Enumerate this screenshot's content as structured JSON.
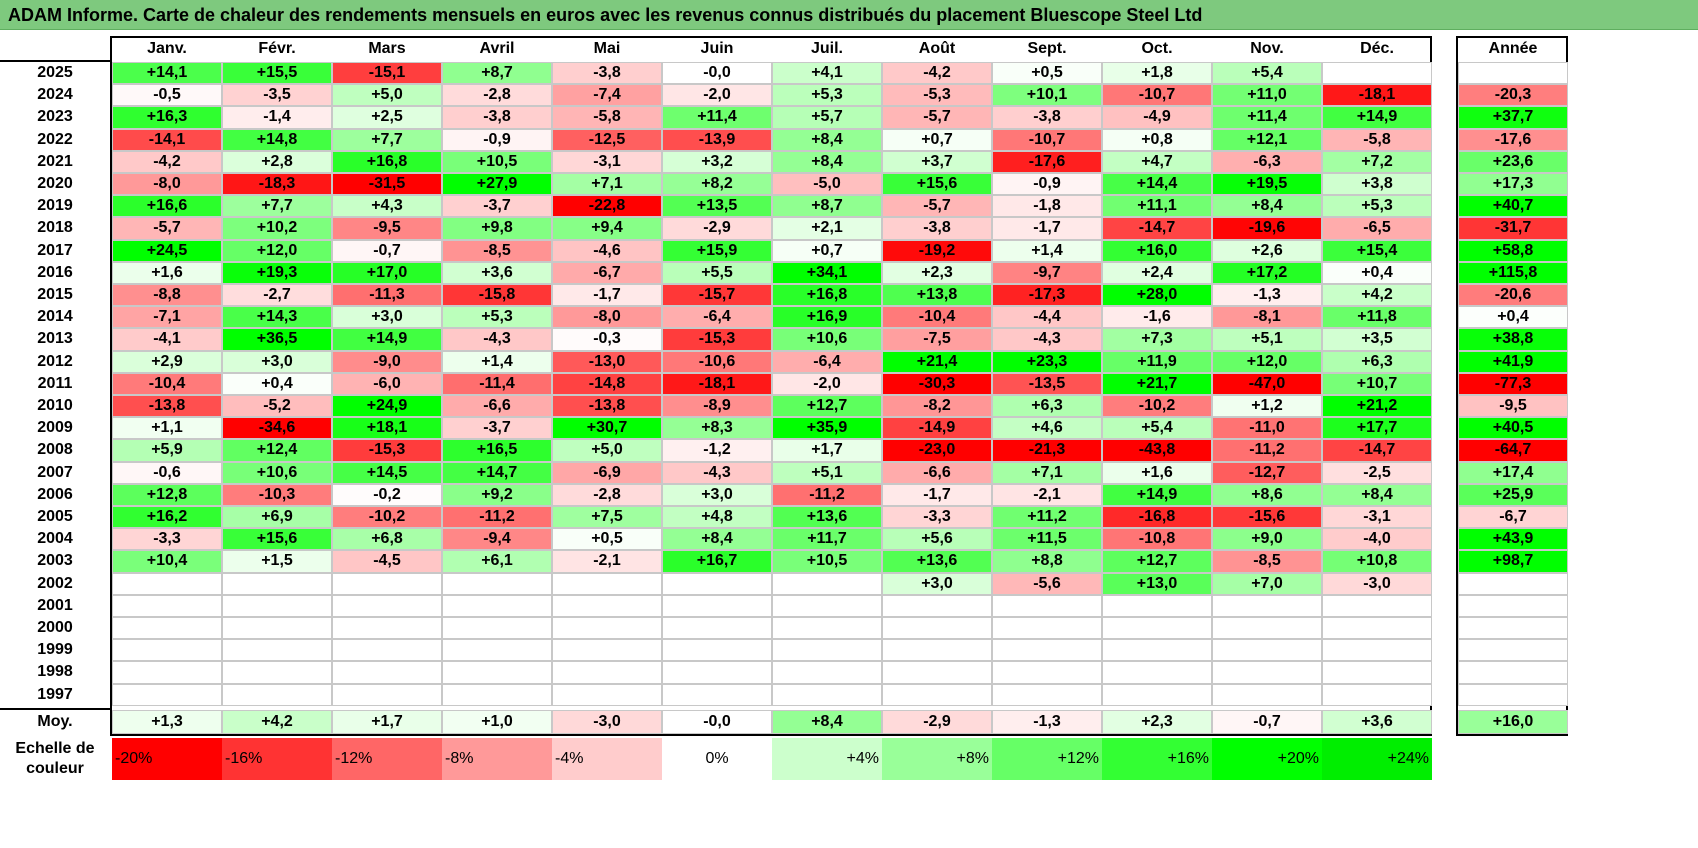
{
  "chart_data": {
    "type": "heatmap",
    "title": "ADAM Informe. Carte de chaleur des rendements mensuels en euros avec les revenus connus distribués du placement Bluescope Steel Ltd",
    "columns": [
      "Janv.",
      "Févr.",
      "Mars",
      "Avril",
      "Mai",
      "Juin",
      "Juil.",
      "Août",
      "Sept.",
      "Oct.",
      "Nov.",
      "Déc."
    ],
    "year_header": "Année",
    "rows": [
      {
        "year": "2025",
        "values": [
          "+14,1",
          "+15,5",
          "-15,1",
          "+8,7",
          "-3,8",
          "-0,0",
          "+4,1",
          "-4,2",
          "+0,5",
          "+1,8",
          "+5,4",
          ""
        ],
        "annual": ""
      },
      {
        "year": "2024",
        "values": [
          "-0,5",
          "-3,5",
          "+5,0",
          "-2,8",
          "-7,4",
          "-2,0",
          "+5,3",
          "-5,3",
          "+10,1",
          "-10,7",
          "+11,0",
          "-18,1"
        ],
        "annual": "-20,3"
      },
      {
        "year": "2023",
        "values": [
          "+16,3",
          "-1,4",
          "+2,5",
          "-3,8",
          "-5,8",
          "+11,4",
          "+5,7",
          "-5,7",
          "-3,8",
          "-4,9",
          "+11,4",
          "+14,9"
        ],
        "annual": "+37,7"
      },
      {
        "year": "2022",
        "values": [
          "-14,1",
          "+14,8",
          "+7,7",
          "-0,9",
          "-12,5",
          "-13,9",
          "+8,4",
          "+0,7",
          "-10,7",
          "+0,8",
          "+12,1",
          "-5,8"
        ],
        "annual": "-17,6"
      },
      {
        "year": "2021",
        "values": [
          "-4,2",
          "+2,8",
          "+16,8",
          "+10,5",
          "-3,1",
          "+3,2",
          "+8,4",
          "+3,7",
          "-17,6",
          "+4,7",
          "-6,3",
          "+7,2"
        ],
        "annual": "+23,6"
      },
      {
        "year": "2020",
        "values": [
          "-8,0",
          "-18,3",
          "-31,5",
          "+27,9",
          "+7,1",
          "+8,2",
          "-5,0",
          "+15,6",
          "-0,9",
          "+14,4",
          "+19,5",
          "+3,8"
        ],
        "annual": "+17,3"
      },
      {
        "year": "2019",
        "values": [
          "+16,6",
          "+7,7",
          "+4,3",
          "-3,7",
          "-22,8",
          "+13,5",
          "+8,7",
          "-5,7",
          "-1,8",
          "+11,1",
          "+8,4",
          "+5,3"
        ],
        "annual": "+40,7"
      },
      {
        "year": "2018",
        "values": [
          "-5,7",
          "+10,2",
          "-9,5",
          "+9,8",
          "+9,4",
          "-2,9",
          "+2,1",
          "-3,8",
          "-1,7",
          "-14,7",
          "-19,6",
          "-6,5"
        ],
        "annual": "-31,7"
      },
      {
        "year": "2017",
        "values": [
          "+24,5",
          "+12,0",
          "-0,7",
          "-8,5",
          "-4,6",
          "+15,9",
          "+0,7",
          "-19,2",
          "+1,4",
          "+16,0",
          "+2,6",
          "+15,4"
        ],
        "annual": "+58,8"
      },
      {
        "year": "2016",
        "values": [
          "+1,6",
          "+19,3",
          "+17,0",
          "+3,6",
          "-6,7",
          "+5,5",
          "+34,1",
          "+2,3",
          "-9,7",
          "+2,4",
          "+17,2",
          "+0,4"
        ],
        "annual": "+115,8"
      },
      {
        "year": "2015",
        "values": [
          "-8,8",
          "-2,7",
          "-11,3",
          "-15,8",
          "-1,7",
          "-15,7",
          "+16,8",
          "+13,8",
          "-17,3",
          "+28,0",
          "-1,3",
          "+4,2"
        ],
        "annual": "-20,6"
      },
      {
        "year": "2014",
        "values": [
          "-7,1",
          "+14,3",
          "+3,0",
          "+5,3",
          "-8,0",
          "-6,4",
          "+16,9",
          "-10,4",
          "-4,4",
          "-1,6",
          "-8,1",
          "+11,8"
        ],
        "annual": "+0,4"
      },
      {
        "year": "2013",
        "values": [
          "-4,1",
          "+36,5",
          "+14,9",
          "-4,3",
          "-0,3",
          "-15,3",
          "+10,6",
          "-7,5",
          "-4,3",
          "+7,3",
          "+5,1",
          "+3,5"
        ],
        "annual": "+38,8"
      },
      {
        "year": "2012",
        "values": [
          "+2,9",
          "+3,0",
          "-9,0",
          "+1,4",
          "-13,0",
          "-10,6",
          "-6,4",
          "+21,4",
          "+23,3",
          "+11,9",
          "+12,0",
          "+6,3"
        ],
        "annual": "+41,9"
      },
      {
        "year": "2011",
        "values": [
          "-10,4",
          "+0,4",
          "-6,0",
          "-11,4",
          "-14,8",
          "-18,1",
          "-2,0",
          "-30,3",
          "-13,5",
          "+21,7",
          "-47,0",
          "+10,7"
        ],
        "annual": "-77,3"
      },
      {
        "year": "2010",
        "values": [
          "-13,8",
          "-5,2",
          "+24,9",
          "-6,6",
          "-13,8",
          "-8,9",
          "+12,7",
          "-8,2",
          "+6,3",
          "-10,2",
          "+1,2",
          "+21,2"
        ],
        "annual": "-9,5"
      },
      {
        "year": "2009",
        "values": [
          "+1,1",
          "-34,6",
          "+18,1",
          "-3,7",
          "+30,7",
          "+8,3",
          "+35,9",
          "-14,9",
          "+4,6",
          "+5,4",
          "-11,0",
          "+17,7"
        ],
        "annual": "+40,5"
      },
      {
        "year": "2008",
        "values": [
          "+5,9",
          "+12,4",
          "-15,3",
          "+16,5",
          "+5,0",
          "-1,2",
          "+1,7",
          "-23,0",
          "-21,3",
          "-43,8",
          "-11,2",
          "-14,7"
        ],
        "annual": "-64,7"
      },
      {
        "year": "2007",
        "values": [
          "-0,6",
          "+10,6",
          "+14,5",
          "+14,7",
          "-6,9",
          "-4,3",
          "+5,1",
          "-6,6",
          "+7,1",
          "+1,6",
          "-12,7",
          "-2,5"
        ],
        "annual": "+17,4"
      },
      {
        "year": "2006",
        "values": [
          "+12,8",
          "-10,3",
          "-0,2",
          "+9,2",
          "-2,8",
          "+3,0",
          "-11,2",
          "-1,7",
          "-2,1",
          "+14,9",
          "+8,6",
          "+8,4"
        ],
        "annual": "+25,9"
      },
      {
        "year": "2005",
        "values": [
          "+16,2",
          "+6,9",
          "-10,2",
          "-11,2",
          "+7,5",
          "+4,8",
          "+13,6",
          "-3,3",
          "+11,2",
          "-16,8",
          "-15,6",
          "-3,1"
        ],
        "annual": "-6,7"
      },
      {
        "year": "2004",
        "values": [
          "-3,3",
          "+15,6",
          "+6,8",
          "-9,4",
          "+0,5",
          "+8,4",
          "+11,7",
          "+5,6",
          "+11,5",
          "-10,8",
          "+9,0",
          "-4,0"
        ],
        "annual": "+43,9"
      },
      {
        "year": "2003",
        "values": [
          "+10,4",
          "+1,5",
          "-4,5",
          "+6,1",
          "-2,1",
          "+16,7",
          "+10,5",
          "+13,6",
          "+8,8",
          "+12,7",
          "-8,5",
          "+10,8"
        ],
        "annual": "+98,7"
      },
      {
        "year": "2002",
        "values": [
          "",
          "",
          "",
          "",
          "",
          "",
          "",
          "+3,0",
          "-5,6",
          "+13,0",
          "+7,0",
          "-3,0"
        ],
        "annual": ""
      },
      {
        "year": "2001",
        "values": [
          "",
          "",
          "",
          "",
          "",
          "",
          "",
          "",
          "",
          "",
          "",
          ""
        ],
        "annual": ""
      },
      {
        "year": "2000",
        "values": [
          "",
          "",
          "",
          "",
          "",
          "",
          "",
          "",
          "",
          "",
          "",
          ""
        ],
        "annual": ""
      },
      {
        "year": "1999",
        "values": [
          "",
          "",
          "",
          "",
          "",
          "",
          "",
          "",
          "",
          "",
          "",
          ""
        ],
        "annual": ""
      },
      {
        "year": "1998",
        "values": [
          "",
          "",
          "",
          "",
          "",
          "",
          "",
          "",
          "",
          "",
          "",
          ""
        ],
        "annual": ""
      },
      {
        "year": "1997",
        "values": [
          "",
          "",
          "",
          "",
          "",
          "",
          "",
          "",
          "",
          "",
          "",
          ""
        ],
        "annual": ""
      }
    ],
    "average": {
      "label": "Moy.",
      "values": [
        "+1,3",
        "+4,2",
        "+1,7",
        "+1,0",
        "-3,0",
        "-0,0",
        "+8,4",
        "-2,9",
        "-1,3",
        "+2,3",
        "-0,7",
        "+3,6"
      ],
      "annual": "+16,0"
    },
    "color_scale": {
      "label": "Echelle de couleur",
      "stops": [
        {
          "label": "-20%",
          "value": -20,
          "color": "#ff0000"
        },
        {
          "label": "-16%",
          "value": -16,
          "color": "#ff3333"
        },
        {
          "label": "-12%",
          "value": -12,
          "color": "#ff6666"
        },
        {
          "label": "-8%",
          "value": -8,
          "color": "#ff9999"
        },
        {
          "label": "-4%",
          "value": -4,
          "color": "#ffcccc"
        },
        {
          "label": "0%",
          "value": 0,
          "color": "#ffffff"
        },
        {
          "label": "+4%",
          "value": 4,
          "color": "#ccffcc"
        },
        {
          "label": "+8%",
          "value": 8,
          "color": "#99ff99"
        },
        {
          "label": "+12%",
          "value": 12,
          "color": "#66ff66"
        },
        {
          "label": "+16%",
          "value": 16,
          "color": "#33ff33"
        },
        {
          "label": "+20%",
          "value": 20,
          "color": "#00ff00"
        },
        {
          "label": "+24%",
          "value": 24,
          "color": "#00ee00"
        }
      ]
    }
  }
}
